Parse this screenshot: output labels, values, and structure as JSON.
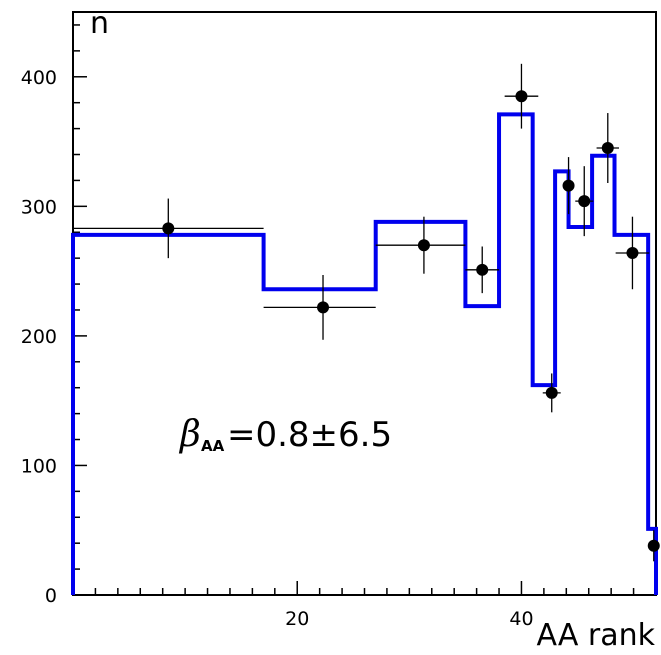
{
  "chart_data": {
    "type": "histogram",
    "xlabel": "AA rank",
    "ylabel": "n",
    "xlim": [
      0,
      52
    ],
    "ylim": [
      0,
      450
    ],
    "x_ticks": [
      20,
      40
    ],
    "y_ticks": [
      0,
      100,
      200,
      300,
      400
    ],
    "grid": false,
    "legend": "none",
    "colors": {
      "model": "#0000ee",
      "data": "#000000"
    },
    "annotation": {
      "symbol": "β",
      "subscript": "AA",
      "text": "=0.8±6.5"
    },
    "model_bins": [
      {
        "x0": 0,
        "x1": 17,
        "y": 278
      },
      {
        "x0": 17,
        "x1": 27,
        "y": 236
      },
      {
        "x0": 27,
        "x1": 35,
        "y": 288
      },
      {
        "x0": 35,
        "x1": 38,
        "y": 223
      },
      {
        "x0": 38,
        "x1": 41,
        "y": 371
      },
      {
        "x0": 41,
        "x1": 43,
        "y": 162
      },
      {
        "x0": 43,
        "x1": 44.2,
        "y": 327
      },
      {
        "x0": 44.2,
        "x1": 46.3,
        "y": 284
      },
      {
        "x0": 46.3,
        "x1": 48.3,
        "y": 339
      },
      {
        "x0": 48.3,
        "x1": 51.3,
        "y": 278
      },
      {
        "x0": 51.3,
        "x1": 52,
        "y": 51
      }
    ],
    "data_points": [
      {
        "x": 8.5,
        "y": 283,
        "xerr": [
          0,
          17
        ],
        "yerr": 23
      },
      {
        "x": 22.3,
        "y": 222,
        "xerr": [
          17,
          27
        ],
        "yerr": 25
      },
      {
        "x": 31.3,
        "y": 270,
        "xerr": [
          27,
          35
        ],
        "yerr": 22
      },
      {
        "x": 36.5,
        "y": 251,
        "xerr": [
          35,
          38
        ],
        "yerr": 18
      },
      {
        "x": 40,
        "y": 385,
        "xerr": [
          38.5,
          41.5
        ],
        "yerr": 25
      },
      {
        "x": 42.7,
        "y": 156,
        "xerr": [
          41.9,
          43.5
        ],
        "yerr": 15
      },
      {
        "x": 44.2,
        "y": 316,
        "xerr": [
          43.7,
          44.7
        ],
        "yerr": 22
      },
      {
        "x": 45.6,
        "y": 304,
        "xerr": [
          44.8,
          46.4
        ],
        "yerr": 27
      },
      {
        "x": 47.7,
        "y": 345,
        "xerr": [
          46.7,
          48.7
        ],
        "yerr": 27
      },
      {
        "x": 49.9,
        "y": 264,
        "xerr": [
          48.4,
          51.4
        ],
        "yerr": 28
      },
      {
        "x": 51.8,
        "y": 38,
        "xerr": [
          51.6,
          52
        ],
        "yerr": 12
      }
    ]
  }
}
